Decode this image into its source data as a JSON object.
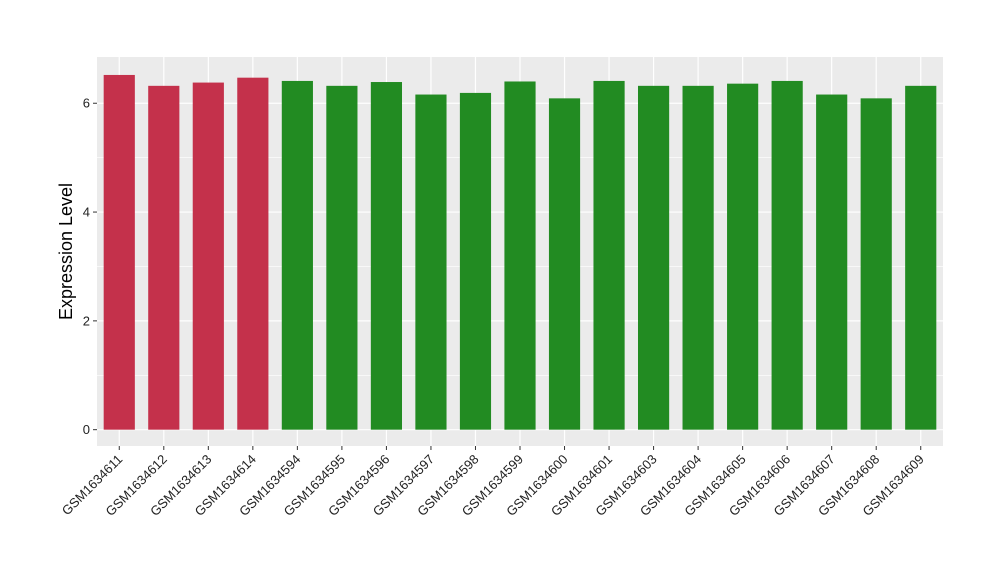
{
  "chart_data": {
    "type": "bar",
    "title": "",
    "xlabel": "",
    "ylabel": "Expression Level",
    "ylim": [
      -0.3,
      6.85
    ],
    "yticks": [
      0,
      2,
      4,
      6
    ],
    "grid": true,
    "legend": "none",
    "colors": {
      "group1": "#C4314B",
      "group2": "#228B22",
      "panel": "#EBEBEB",
      "grid": "#FFFFFF"
    },
    "categories": [
      "GSM1634611",
      "GSM1634612",
      "GSM1634613",
      "GSM1634614",
      "GSM1634594",
      "GSM1634595",
      "GSM1634596",
      "GSM1634597",
      "GSM1634598",
      "GSM1634599",
      "GSM1634600",
      "GSM1634601",
      "GSM1634603",
      "GSM1634604",
      "GSM1634605",
      "GSM1634606",
      "GSM1634607",
      "GSM1634608",
      "GSM1634609"
    ],
    "values": [
      6.52,
      6.32,
      6.38,
      6.47,
      6.41,
      6.32,
      6.39,
      6.16,
      6.19,
      6.4,
      6.09,
      6.41,
      6.32,
      6.32,
      6.36,
      6.41,
      6.16,
      6.09,
      6.32
    ],
    "groups": [
      "group1",
      "group1",
      "group1",
      "group1",
      "group2",
      "group2",
      "group2",
      "group2",
      "group2",
      "group2",
      "group2",
      "group2",
      "group2",
      "group2",
      "group2",
      "group2",
      "group2",
      "group2",
      "group2"
    ]
  }
}
